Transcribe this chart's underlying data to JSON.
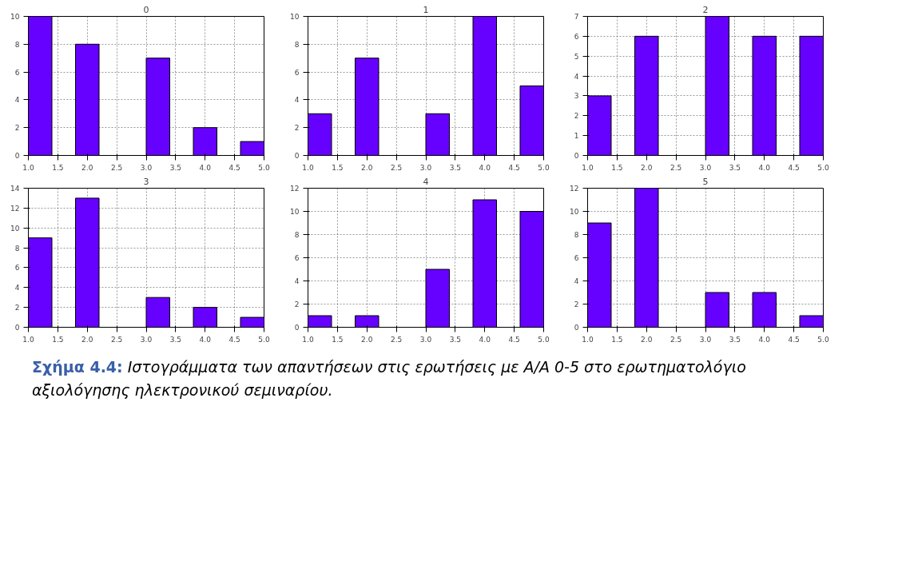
{
  "chart_data": [
    {
      "type": "histogram",
      "title": "0",
      "bins": [
        1.0,
        1.4,
        1.8,
        2.2,
        2.6,
        3.0,
        3.4,
        3.8,
        4.2,
        4.6,
        5.0
      ],
      "values": [
        10,
        0,
        8,
        0,
        0,
        7,
        0,
        2,
        0,
        1
      ],
      "color": "#6600ff",
      "xlim": [
        1,
        5
      ],
      "xticks": [
        {
          "value": 1,
          "label": "1.0"
        },
        {
          "value": 1.5,
          "label": "1.5"
        },
        {
          "value": 2,
          "label": "2.0"
        },
        {
          "value": 2.5,
          "label": "2.5"
        },
        {
          "value": 3,
          "label": "3.0"
        },
        {
          "value": 3.5,
          "label": "3.5"
        },
        {
          "value": 4,
          "label": "4.0"
        },
        {
          "value": 4.5,
          "label": "4.5"
        },
        {
          "value": 5,
          "label": "5.0"
        }
      ],
      "ylim": [
        0,
        10
      ],
      "yticks": [
        0,
        2,
        4,
        6,
        8,
        10
      ],
      "grid": true
    },
    {
      "type": "histogram",
      "title": "1",
      "bins": [
        1.0,
        1.4,
        1.8,
        2.2,
        2.6,
        3.0,
        3.4,
        3.8,
        4.2,
        4.6,
        5.0
      ],
      "values": [
        3,
        0,
        7,
        0,
        0,
        3,
        0,
        10,
        0,
        5
      ],
      "color": "#6600ff",
      "xlim": [
        1,
        5
      ],
      "xticks": [
        {
          "value": 1,
          "label": "1.0"
        },
        {
          "value": 1.5,
          "label": "1.5"
        },
        {
          "value": 2,
          "label": "2.0"
        },
        {
          "value": 2.5,
          "label": "2.5"
        },
        {
          "value": 3,
          "label": "3.0"
        },
        {
          "value": 3.5,
          "label": "3.5"
        },
        {
          "value": 4,
          "label": "4.0"
        },
        {
          "value": 4.5,
          "label": "4.5"
        },
        {
          "value": 5,
          "label": "5.0"
        }
      ],
      "ylim": [
        0,
        10
      ],
      "yticks": [
        0,
        2,
        4,
        6,
        8,
        10
      ],
      "grid": true
    },
    {
      "type": "histogram",
      "title": "2",
      "bins": [
        1.0,
        1.4,
        1.8,
        2.2,
        2.6,
        3.0,
        3.4,
        3.8,
        4.2,
        4.6,
        5.0
      ],
      "values": [
        3,
        0,
        6,
        0,
        0,
        7,
        0,
        6,
        0,
        6
      ],
      "color": "#6600ff",
      "xlim": [
        1,
        5
      ],
      "xticks": [
        {
          "value": 1,
          "label": "1.0"
        },
        {
          "value": 1.5,
          "label": "1.5"
        },
        {
          "value": 2,
          "label": "2.0"
        },
        {
          "value": 2.5,
          "label": "2.5"
        },
        {
          "value": 3,
          "label": "3.0"
        },
        {
          "value": 3.5,
          "label": "3.5"
        },
        {
          "value": 4,
          "label": "4.0"
        },
        {
          "value": 4.5,
          "label": "4.5"
        },
        {
          "value": 5,
          "label": "5.0"
        }
      ],
      "ylim": [
        0,
        7
      ],
      "yticks": [
        0,
        1,
        2,
        3,
        4,
        5,
        6,
        7
      ],
      "grid": true
    },
    {
      "type": "histogram",
      "title": "3",
      "bins": [
        1.0,
        1.4,
        1.8,
        2.2,
        2.6,
        3.0,
        3.4,
        3.8,
        4.2,
        4.6,
        5.0
      ],
      "values": [
        9,
        0,
        13,
        0,
        0,
        3,
        0,
        2,
        0,
        1
      ],
      "color": "#6600ff",
      "xlim": [
        1,
        5
      ],
      "xticks": [
        {
          "value": 1,
          "label": "1.0"
        },
        {
          "value": 1.5,
          "label": "1.5"
        },
        {
          "value": 2,
          "label": "2.0"
        },
        {
          "value": 2.5,
          "label": "2.5"
        },
        {
          "value": 3,
          "label": "3.0"
        },
        {
          "value": 3.5,
          "label": "3.5"
        },
        {
          "value": 4,
          "label": "4.0"
        },
        {
          "value": 4.5,
          "label": "4.5"
        },
        {
          "value": 5,
          "label": "5.0"
        }
      ],
      "ylim": [
        0,
        14
      ],
      "yticks": [
        0,
        2,
        4,
        6,
        8,
        10,
        12,
        14
      ],
      "grid": true
    },
    {
      "type": "histogram",
      "title": "4",
      "bins": [
        1.0,
        1.4,
        1.8,
        2.2,
        2.6,
        3.0,
        3.4,
        3.8,
        4.2,
        4.6,
        5.0
      ],
      "values": [
        1,
        0,
        1,
        0,
        0,
        5,
        0,
        11,
        0,
        10
      ],
      "color": "#6600ff",
      "xlim": [
        1,
        5
      ],
      "xticks": [
        {
          "value": 1,
          "label": "1.0"
        },
        {
          "value": 1.5,
          "label": "1.5"
        },
        {
          "value": 2,
          "label": "2.0"
        },
        {
          "value": 2.5,
          "label": "2.5"
        },
        {
          "value": 3,
          "label": "3.0"
        },
        {
          "value": 3.5,
          "label": "3.5"
        },
        {
          "value": 4,
          "label": "4.0"
        },
        {
          "value": 4.5,
          "label": "4.5"
        },
        {
          "value": 5,
          "label": "5.0"
        }
      ],
      "ylim": [
        0,
        12
      ],
      "yticks": [
        0,
        2,
        4,
        6,
        8,
        10,
        12
      ],
      "grid": true
    },
    {
      "type": "histogram",
      "title": "5",
      "bins": [
        1.0,
        1.4,
        1.8,
        2.2,
        2.6,
        3.0,
        3.4,
        3.8,
        4.2,
        4.6,
        5.0
      ],
      "values": [
        9,
        0,
        12,
        0,
        0,
        3,
        0,
        3,
        0,
        1
      ],
      "color": "#6600ff",
      "xlim": [
        1,
        5
      ],
      "xticks": [
        {
          "value": 1,
          "label": "1.0"
        },
        {
          "value": 1.5,
          "label": "1.5"
        },
        {
          "value": 2,
          "label": "2.0"
        },
        {
          "value": 2.5,
          "label": "2.5"
        },
        {
          "value": 3,
          "label": "3.0"
        },
        {
          "value": 3.5,
          "label": "3.5"
        },
        {
          "value": 4,
          "label": "4.0"
        },
        {
          "value": 4.5,
          "label": "4.5"
        },
        {
          "value": 5,
          "label": "5.0"
        }
      ],
      "ylim": [
        0,
        12
      ],
      "yticks": [
        0,
        2,
        4,
        6,
        8,
        10,
        12
      ],
      "grid": true,
      "annotations": [
        "Σχήμα 4.4: Ιστογράμματα των απαντήσεων στις ερωτήσεις με Α/Α 0-5 στο ερωτηματολόγιο αξιολόγησης ηλεκτρονικού σεμιναρίου."
      ]
    }
  ]
}
